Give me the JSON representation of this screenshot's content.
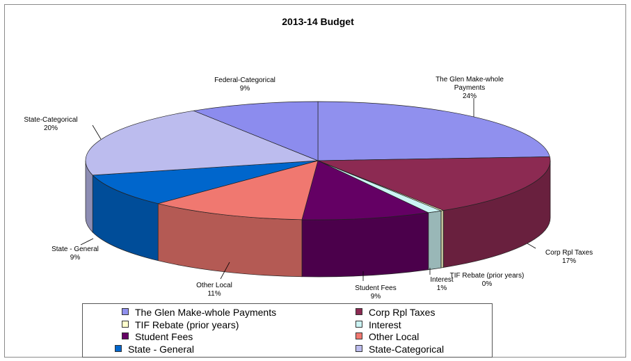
{
  "chart_data": {
    "type": "pie",
    "title": "2013-14 Budget",
    "slices": [
      {
        "name": "The Glen Make-whole Payments",
        "label_lines": [
          "The Glen Make-whole",
          "Payments"
        ],
        "percent_label": "24%",
        "value": 24,
        "color": "#9090ee"
      },
      {
        "name": "Corp Rpl Taxes",
        "label_lines": [
          "Corp Rpl Taxes"
        ],
        "percent_label": "17%",
        "value": 17,
        "color": "#8c2a52"
      },
      {
        "name": "TIF Rebate (prior years)",
        "label_lines": [
          "TIF Rebate (prior years)"
        ],
        "percent_label": "0%",
        "value": 0.2,
        "color": "#ffffcc"
      },
      {
        "name": "Interest",
        "label_lines": [
          "Interest"
        ],
        "percent_label": "1%",
        "value": 1,
        "color": "#ccf4f4"
      },
      {
        "name": "Student Fees",
        "label_lines": [
          "Student Fees"
        ],
        "percent_label": "9%",
        "value": 9,
        "color": "#640064"
      },
      {
        "name": "Other Local",
        "label_lines": [
          "Other Local"
        ],
        "percent_label": "11%",
        "value": 11,
        "color": "#f07870"
      },
      {
        "name": "State - General",
        "label_lines": [
          "State - General"
        ],
        "percent_label": "9%",
        "value": 9,
        "color": "#0066cc"
      },
      {
        "name": "State-Categorical",
        "label_lines": [
          "State-Categorical"
        ],
        "percent_label": "20%",
        "value": 20,
        "color": "#bcbcee"
      },
      {
        "name": "Federal-Categorical",
        "label_lines": [
          "Federal-Categorical"
        ],
        "percent_label": "9%",
        "value": 9,
        "color": "#8c8cee"
      }
    ],
    "legend": {
      "placement": "bottom",
      "entries": [
        {
          "label": "The Glen Make-whole Payments",
          "color": "#9090ee"
        },
        {
          "label": "Corp Rpl Taxes",
          "color": "#8c2a52"
        },
        {
          "label": "TIF Rebate (prior years)",
          "color": "#ffffcc"
        },
        {
          "label": "Interest",
          "color": "#ccf4f4"
        },
        {
          "label": "Student Fees",
          "color": "#640064"
        },
        {
          "label": "Other Local",
          "color": "#f07870"
        },
        {
          "label": "State - General",
          "color": "#0066cc"
        },
        {
          "label": "State-Categorical",
          "color": "#bcbcee"
        }
      ]
    }
  }
}
